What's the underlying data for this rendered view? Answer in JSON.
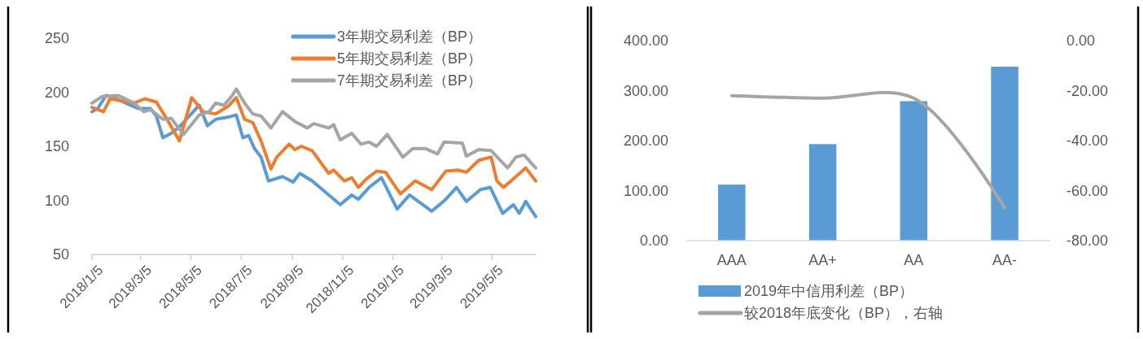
{
  "chart_data": [
    {
      "type": "line",
      "xlim": [
        "2018-01-05",
        "2019-06-27"
      ],
      "xticks": [
        {
          "value": "2018-01-05",
          "label": "2018/1/5"
        },
        {
          "value": "2018-03-05",
          "label": "2018/3/5"
        },
        {
          "value": "2018-05-05",
          "label": "2018/5/5"
        },
        {
          "value": "2018-07-05",
          "label": "2018/7/5"
        },
        {
          "value": "2018-09-05",
          "label": "2018/9/5"
        },
        {
          "value": "2018-11-05",
          "label": "2018/11/5"
        },
        {
          "value": "2019-01-05",
          "label": "2019/1/5"
        },
        {
          "value": "2019-03-05",
          "label": "2019/3/5"
        },
        {
          "value": "2019-05-05",
          "label": "2019/5/5"
        }
      ],
      "ylim": [
        50,
        250
      ],
      "yticks": [
        50,
        100,
        150,
        200,
        250
      ],
      "legend": "top right",
      "series": [
        {
          "name": "3年期交易利差（BP）",
          "color": "#5b9bd5",
          "x": [
            "2018-01-05",
            "2018-01-12",
            "2018-01-22",
            "2018-02-01",
            "2018-02-15",
            "2018-03-02",
            "2018-03-17",
            "2018-03-24",
            "2018-04-01",
            "2018-04-11",
            "2018-04-21",
            "2018-05-15",
            "2018-05-25",
            "2018-06-04",
            "2018-06-19",
            "2018-06-29",
            "2018-07-07",
            "2018-07-14",
            "2018-07-21",
            "2018-07-29",
            "2018-08-07",
            "2018-08-24",
            "2018-09-06",
            "2018-09-14",
            "2018-09-29",
            "2018-10-19",
            "2018-11-02",
            "2018-11-16",
            "2018-11-24",
            "2018-12-07",
            "2018-12-22",
            "2019-01-10",
            "2019-01-25",
            "2019-02-21",
            "2019-03-10",
            "2019-03-23",
            "2019-04-04",
            "2019-04-21",
            "2019-05-03",
            "2019-05-18",
            "2019-05-31",
            "2019-06-07",
            "2019-06-15",
            "2019-06-27"
          ],
          "values": [
            182,
            185,
            197,
            195,
            190,
            185,
            185,
            178,
            158,
            162,
            168,
            188,
            169,
            175,
            177,
            179,
            158,
            160,
            148,
            140,
            118,
            122,
            117,
            125,
            118,
            105,
            96,
            105,
            101,
            112,
            121,
            92,
            105,
            90,
            101,
            112,
            99,
            110,
            112,
            88,
            96,
            88,
            99,
            85
          ]
        },
        {
          "name": "5年期交易利差（BP）",
          "color": "#ed7d31",
          "x": [
            "2018-01-05",
            "2018-01-19",
            "2018-01-27",
            "2018-02-25",
            "2018-03-10",
            "2018-03-24",
            "2018-04-06",
            "2018-04-21",
            "2018-05-06",
            "2018-05-20",
            "2018-06-04",
            "2018-06-19",
            "2018-06-29",
            "2018-07-09",
            "2018-07-19",
            "2018-07-29",
            "2018-08-10",
            "2018-08-17",
            "2018-09-01",
            "2018-09-08",
            "2018-09-16",
            "2018-09-29",
            "2018-10-19",
            "2018-10-25",
            "2018-11-07",
            "2018-11-16",
            "2018-11-24",
            "2018-12-04",
            "2018-12-16",
            "2018-12-27",
            "2019-01-14",
            "2019-02-01",
            "2019-02-21",
            "2019-03-10",
            "2019-03-25",
            "2019-04-04",
            "2019-04-19",
            "2019-05-04",
            "2019-05-11",
            "2019-05-19",
            "2019-05-31",
            "2019-06-15",
            "2019-06-27"
          ],
          "values": [
            186,
            182,
            194,
            190,
            194,
            191,
            175,
            155,
            195,
            182,
            180,
            187,
            195,
            175,
            172,
            155,
            129,
            140,
            152,
            147,
            150,
            146,
            125,
            128,
            118,
            121,
            112,
            120,
            127,
            126,
            106,
            118,
            110,
            127,
            128,
            126,
            137,
            140,
            118,
            112,
            120,
            130,
            118
          ]
        },
        {
          "name": "7年期交易利差（BP）",
          "color": "#a5a5a5",
          "x": [
            "2018-01-05",
            "2018-01-17",
            "2018-02-06",
            "2018-02-25",
            "2018-03-09",
            "2018-03-17",
            "2018-04-01",
            "2018-04-11",
            "2018-04-26",
            "2018-05-15",
            "2018-05-27",
            "2018-06-04",
            "2018-06-14",
            "2018-06-24",
            "2018-06-29",
            "2018-07-09",
            "2018-07-19",
            "2018-07-29",
            "2018-08-10",
            "2018-08-24",
            "2018-09-08",
            "2018-09-23",
            "2018-10-01",
            "2018-10-19",
            "2018-10-25",
            "2018-11-02",
            "2018-11-16",
            "2018-11-27",
            "2018-12-07",
            "2018-12-16",
            "2018-12-29",
            "2019-01-17",
            "2019-01-29",
            "2019-02-13",
            "2019-02-28",
            "2019-03-08",
            "2019-03-30",
            "2019-04-04",
            "2019-04-19",
            "2019-05-04",
            "2019-05-24",
            "2019-06-03",
            "2019-06-13",
            "2019-06-27"
          ],
          "values": [
            190,
            196,
            197,
            190,
            182,
            184,
            175,
            176,
            161,
            179,
            182,
            190,
            188,
            197,
            203,
            190,
            180,
            178,
            167,
            182,
            173,
            167,
            171,
            167,
            170,
            156,
            162,
            152,
            154,
            150,
            161,
            140,
            148,
            148,
            143,
            154,
            153,
            141,
            147,
            146,
            130,
            140,
            142,
            130
          ]
        }
      ]
    },
    {
      "type": "bar",
      "categories": [
        "AAA",
        "AA+",
        "AA",
        "AA-"
      ],
      "ylim": [
        0,
        400
      ],
      "yticks": [
        {
          "value": 0,
          "label": "0.00"
        },
        {
          "value": 100,
          "label": "100.00"
        },
        {
          "value": 200,
          "label": "200.00"
        },
        {
          "value": 300,
          "label": "300.00"
        },
        {
          "value": 400,
          "label": "400.00"
        }
      ],
      "y2lim": [
        -80,
        0
      ],
      "y2ticks": [
        {
          "value": -80,
          "label": "-80.00"
        },
        {
          "value": -60,
          "label": "-60.00"
        },
        {
          "value": -40,
          "label": "-40.00"
        },
        {
          "value": -20,
          "label": "-20.00"
        },
        {
          "value": 0,
          "label": "0.00"
        }
      ],
      "legend": "bottom",
      "series": [
        {
          "name": "2019年中信用利差（BP）",
          "color": "#5b9bd5",
          "values": [
            112,
            193,
            279,
            348
          ]
        },
        {
          "name": "较2018年底变化（BP），右轴",
          "type": "line",
          "axis": "y2",
          "color": "#a5a5a5",
          "values": [
            -22,
            -23,
            -23,
            -67
          ]
        }
      ]
    }
  ]
}
